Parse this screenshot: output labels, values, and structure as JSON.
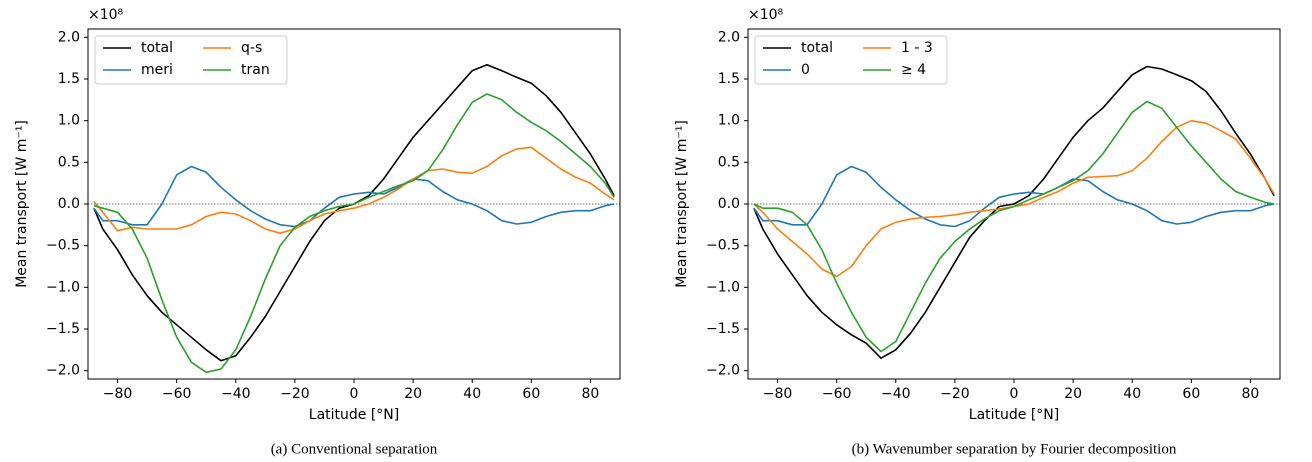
{
  "chart_data": [
    {
      "type": "line",
      "offset_text": "×10⁸",
      "xlabel": "Latitude [°N]",
      "ylabel": "Mean transport [W m⁻¹]",
      "caption": "(a)  Conventional separation",
      "xlim": [
        -90,
        90
      ],
      "ylim": [
        -2.1,
        2.1
      ],
      "xticks": [
        {
          "value": -80,
          "label": "−80"
        },
        {
          "value": -60,
          "label": "−60"
        },
        {
          "value": -40,
          "label": "−40"
        },
        {
          "value": -20,
          "label": "−20"
        },
        0,
        20,
        40,
        60,
        80
      ],
      "yticks": [
        {
          "value": -2,
          "label": "−2.0"
        },
        {
          "value": -1.5,
          "label": "−1.5"
        },
        {
          "value": -1,
          "label": "−1.0"
        },
        {
          "value": -0.5,
          "label": "−0.5"
        },
        {
          "value": 0,
          "label": "0.0"
        },
        {
          "value": 0.5,
          "label": "0.5"
        },
        {
          "value": 1,
          "label": "1.0"
        },
        {
          "value": 1.5,
          "label": "1.5"
        },
        {
          "value": 2,
          "label": "2.0"
        }
      ],
      "hline": 0,
      "legend": "upper left",
      "x": [
        -88,
        -85,
        -80,
        -75,
        -70,
        -65,
        -60,
        -55,
        -50,
        -45,
        -40,
        -35,
        -30,
        -25,
        -20,
        -15,
        -10,
        -5,
        0,
        5,
        10,
        15,
        20,
        25,
        30,
        35,
        40,
        45,
        50,
        55,
        60,
        65,
        70,
        75,
        80,
        85,
        88
      ],
      "series": [
        {
          "name": "total",
          "color": "#000000",
          "values": [
            -0.05,
            -0.3,
            -0.55,
            -0.85,
            -1.1,
            -1.3,
            -1.45,
            -1.6,
            -1.75,
            -1.88,
            -1.82,
            -1.6,
            -1.35,
            -1.05,
            -0.75,
            -0.45,
            -0.2,
            -0.05,
            0.0,
            0.1,
            0.3,
            0.55,
            0.8,
            1.0,
            1.2,
            1.4,
            1.6,
            1.67,
            1.6,
            1.52,
            1.45,
            1.3,
            1.1,
            0.85,
            0.6,
            0.3,
            0.1
          ]
        },
        {
          "name": "meri",
          "color": "#1f77b4",
          "values": [
            -0.05,
            -0.2,
            -0.2,
            -0.25,
            -0.25,
            0.0,
            0.35,
            0.45,
            0.38,
            0.2,
            0.05,
            -0.08,
            -0.18,
            -0.25,
            -0.27,
            -0.2,
            -0.05,
            0.08,
            0.12,
            0.14,
            0.12,
            0.2,
            0.3,
            0.28,
            0.15,
            0.05,
            0.0,
            -0.08,
            -0.2,
            -0.24,
            -0.22,
            -0.15,
            -0.1,
            -0.08,
            -0.08,
            -0.02,
            0.0
          ]
        },
        {
          "name": "q-s",
          "color": "#ff7f0e",
          "values": [
            0.03,
            -0.1,
            -0.32,
            -0.28,
            -0.3,
            -0.3,
            -0.3,
            -0.25,
            -0.15,
            -0.1,
            -0.12,
            -0.2,
            -0.3,
            -0.35,
            -0.3,
            -0.2,
            -0.12,
            -0.08,
            -0.05,
            0.0,
            0.08,
            0.18,
            0.3,
            0.4,
            0.42,
            0.38,
            0.37,
            0.45,
            0.58,
            0.66,
            0.68,
            0.55,
            0.42,
            0.32,
            0.25,
            0.12,
            0.05
          ]
        },
        {
          "name": "tran",
          "color": "#2ca02c",
          "values": [
            -0.02,
            -0.05,
            -0.1,
            -0.3,
            -0.65,
            -1.15,
            -1.6,
            -1.9,
            -2.02,
            -1.98,
            -1.75,
            -1.35,
            -0.9,
            -0.5,
            -0.28,
            -0.15,
            -0.08,
            -0.03,
            0.0,
            0.08,
            0.15,
            0.22,
            0.28,
            0.4,
            0.65,
            0.95,
            1.22,
            1.32,
            1.25,
            1.1,
            0.98,
            0.88,
            0.75,
            0.6,
            0.45,
            0.25,
            0.08
          ]
        }
      ]
    },
    {
      "type": "line",
      "offset_text": "×10⁸",
      "xlabel": "Latitude [°N]",
      "ylabel": "Mean transport [W m⁻¹]",
      "caption": "(b)  Wavenumber separation by Fourier decomposition",
      "xlim": [
        -90,
        90
      ],
      "ylim": [
        -2.1,
        2.1
      ],
      "xticks": [
        {
          "value": -80,
          "label": "−80"
        },
        {
          "value": -60,
          "label": "−60"
        },
        {
          "value": -40,
          "label": "−40"
        },
        {
          "value": -20,
          "label": "−20"
        },
        0,
        20,
        40,
        60,
        80
      ],
      "yticks": [
        {
          "value": -2,
          "label": "−2.0"
        },
        {
          "value": -1.5,
          "label": "−1.5"
        },
        {
          "value": -1,
          "label": "−1.0"
        },
        {
          "value": -0.5,
          "label": "−0.5"
        },
        {
          "value": 0,
          "label": "0.0"
        },
        {
          "value": 0.5,
          "label": "0.5"
        },
        {
          "value": 1,
          "label": "1.0"
        },
        {
          "value": 1.5,
          "label": "1.5"
        },
        {
          "value": 2,
          "label": "2.0"
        }
      ],
      "hline": 0,
      "legend": "upper left",
      "x": [
        -88,
        -85,
        -80,
        -75,
        -70,
        -65,
        -60,
        -55,
        -50,
        -45,
        -40,
        -35,
        -30,
        -25,
        -20,
        -15,
        -10,
        -5,
        0,
        5,
        10,
        15,
        20,
        25,
        30,
        35,
        40,
        45,
        50,
        55,
        60,
        65,
        70,
        75,
        80,
        85,
        88
      ],
      "series": [
        {
          "name": "total",
          "color": "#000000",
          "values": [
            -0.05,
            -0.3,
            -0.6,
            -0.85,
            -1.1,
            -1.3,
            -1.45,
            -1.57,
            -1.67,
            -1.85,
            -1.75,
            -1.55,
            -1.3,
            -1.0,
            -0.7,
            -0.4,
            -0.2,
            -0.03,
            0.0,
            0.1,
            0.3,
            0.55,
            0.8,
            1.0,
            1.15,
            1.35,
            1.55,
            1.65,
            1.62,
            1.55,
            1.48,
            1.35,
            1.12,
            0.85,
            0.6,
            0.3,
            0.1
          ]
        },
        {
          "name": "0",
          "color": "#1f77b4",
          "values": [
            -0.05,
            -0.2,
            -0.2,
            -0.25,
            -0.25,
            0.0,
            0.35,
            0.45,
            0.38,
            0.2,
            0.05,
            -0.08,
            -0.18,
            -0.25,
            -0.27,
            -0.2,
            -0.05,
            0.08,
            0.12,
            0.14,
            0.12,
            0.2,
            0.3,
            0.28,
            0.15,
            0.05,
            0.0,
            -0.08,
            -0.2,
            -0.24,
            -0.22,
            -0.15,
            -0.1,
            -0.08,
            -0.08,
            -0.02,
            0.0
          ]
        },
        {
          "name": "1 - 3",
          "color": "#ff7f0e",
          "values": [
            0.0,
            -0.1,
            -0.3,
            -0.45,
            -0.6,
            -0.78,
            -0.87,
            -0.75,
            -0.5,
            -0.3,
            -0.22,
            -0.18,
            -0.16,
            -0.15,
            -0.13,
            -0.1,
            -0.08,
            -0.06,
            -0.03,
            0.0,
            0.08,
            0.15,
            0.25,
            0.32,
            0.33,
            0.34,
            0.4,
            0.55,
            0.75,
            0.92,
            1.0,
            0.97,
            0.88,
            0.78,
            0.55,
            0.3,
            0.12
          ]
        },
        {
          "name": "≥ 4",
          "color": "#2ca02c",
          "values": [
            0.0,
            -0.05,
            -0.05,
            -0.1,
            -0.25,
            -0.55,
            -0.95,
            -1.3,
            -1.6,
            -1.77,
            -1.65,
            -1.3,
            -0.95,
            -0.65,
            -0.45,
            -0.3,
            -0.18,
            -0.08,
            -0.03,
            0.05,
            0.12,
            0.2,
            0.28,
            0.4,
            0.6,
            0.85,
            1.1,
            1.23,
            1.15,
            0.92,
            0.7,
            0.5,
            0.3,
            0.15,
            0.08,
            0.02,
            0.0
          ]
        }
      ]
    }
  ]
}
